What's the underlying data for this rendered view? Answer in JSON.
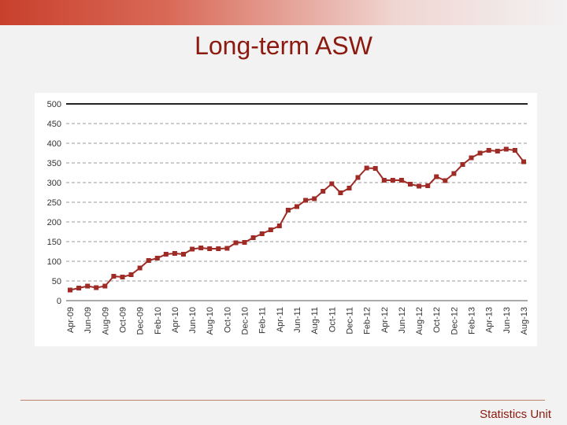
{
  "slide": {
    "title": "Long-term ASW",
    "footer": "Statistics Unit"
  },
  "colors": {
    "series": "#9e2b25",
    "title": "#8b1a10",
    "grid": "#9a9a9a",
    "axis_text": "#333333"
  },
  "chart_data": {
    "type": "line",
    "title": "",
    "xlabel": "",
    "ylabel": "",
    "ylim": [
      0,
      500
    ],
    "yticks": [
      0,
      50,
      100,
      150,
      200,
      250,
      300,
      350,
      400,
      450,
      500
    ],
    "grid": true,
    "categories": [
      "Apr-09",
      "May-09",
      "Jun-09",
      "Jul-09",
      "Aug-09",
      "Sep-09",
      "Oct-09",
      "Nov-09",
      "Dec-09",
      "Jan-10",
      "Feb-10",
      "Mar-10",
      "Apr-10",
      "May-10",
      "Jun-10",
      "Jul-10",
      "Aug-10",
      "Sep-10",
      "Oct-10",
      "Nov-10",
      "Dec-10",
      "Jan-11",
      "Feb-11",
      "Mar-11",
      "Apr-11",
      "May-11",
      "Jun-11",
      "Jul-11",
      "Aug-11",
      "Sep-11",
      "Oct-11",
      "Nov-11",
      "Dec-11",
      "Jan-12",
      "Feb-12",
      "Mar-12",
      "Apr-12",
      "May-12",
      "Jun-12",
      "Jul-12",
      "Aug-12",
      "Sep-12",
      "Oct-12",
      "Nov-12",
      "Dec-12",
      "Jan-13",
      "Feb-13",
      "Mar-13",
      "Apr-13",
      "May-13",
      "Jun-13",
      "Jul-13",
      "Aug-13"
    ],
    "x_tick_labels": [
      "Apr-09",
      "Jun-09",
      "Aug-09",
      "Oct-09",
      "Dec-09",
      "Feb-10",
      "Apr-10",
      "Jun-10",
      "Aug-10",
      "Oct-10",
      "Dec-10",
      "Feb-11",
      "Apr-11",
      "Jun-11",
      "Aug-11",
      "Oct-11",
      "Dec-11",
      "Feb-12",
      "Apr-12",
      "Jun-12",
      "Aug-12",
      "Oct-12",
      "Dec-12",
      "Feb-13",
      "Apr-13",
      "Jun-13",
      "Aug-13"
    ],
    "series": [
      {
        "name": "Long-term ASW",
        "values": [
          27,
          32,
          37,
          33,
          37,
          62,
          60,
          66,
          83,
          102,
          108,
          118,
          120,
          118,
          131,
          134,
          132,
          132,
          133,
          147,
          148,
          160,
          170,
          180,
          190,
          230,
          239,
          255,
          259,
          278,
          297,
          274,
          286,
          313,
          337,
          336,
          306,
          306,
          306,
          296,
          291,
          292,
          315,
          305,
          323,
          346,
          363,
          375,
          382,
          380,
          385,
          382,
          353
        ]
      }
    ]
  }
}
